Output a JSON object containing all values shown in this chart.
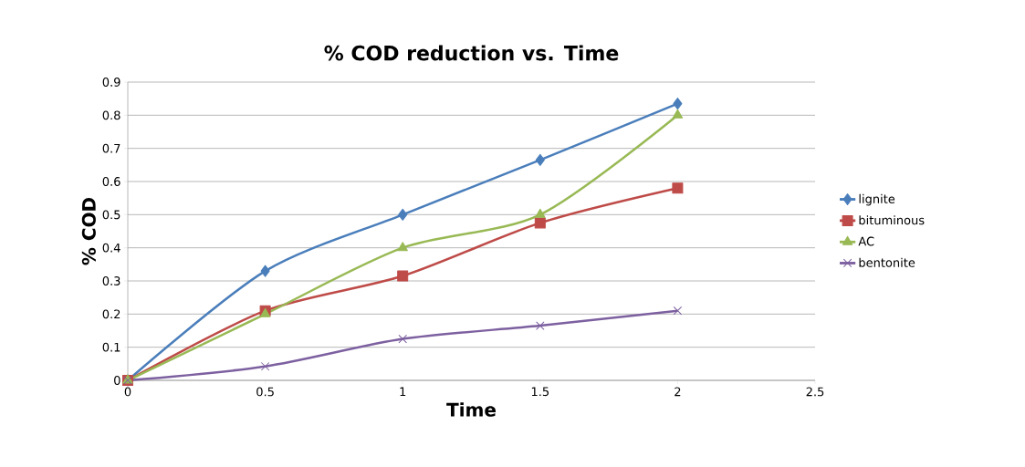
{
  "chart_data": {
    "type": "line",
    "title": "% COD reduction  vs.  Time",
    "xlabel": "Time",
    "ylabel": "% COD",
    "x": [
      0,
      0.5,
      1,
      1.5,
      2
    ],
    "series": [
      {
        "name": "lignite",
        "color": "#4a7ebb",
        "marker": "diamond",
        "values": [
          0,
          0.33,
          0.5,
          0.665,
          0.835
        ]
      },
      {
        "name": "bituminous",
        "color": "#be4b48",
        "marker": "square",
        "values": [
          0,
          0.21,
          0.315,
          0.475,
          0.58
        ]
      },
      {
        "name": "AC",
        "color": "#98b954",
        "marker": "triangle",
        "values": [
          0,
          0.2,
          0.4,
          0.5,
          0.8
        ]
      },
      {
        "name": "bentonite",
        "color": "#7d60a0",
        "marker": "cross",
        "values": [
          0,
          0.042,
          0.125,
          0.165,
          0.21
        ]
      }
    ],
    "xlim": [
      0,
      2.5
    ],
    "ylim": [
      0,
      0.9
    ],
    "xticks": [
      0,
      0.5,
      1,
      1.5,
      2,
      2.5
    ],
    "yticks": [
      {
        "value": 0,
        "label": "0"
      },
      {
        "value": 0.1,
        "label": "0.1"
      },
      {
        "value": 0.2,
        "label": "0.2"
      },
      {
        "value": 0.3,
        "label": "0.3"
      },
      {
        "value": 0.4,
        "label": "0.4"
      },
      {
        "value": 0.5,
        "label": "0.5"
      },
      {
        "value": 0.6,
        "label": "0.6"
      },
      {
        "value": 0.7,
        "label": "0.7"
      },
      {
        "value": 0.8,
        "label": "0.8"
      },
      {
        "value": 0.9,
        "label": "0.9"
      }
    ],
    "grid": "y",
    "legend": "right",
    "line_style": "solid"
  }
}
